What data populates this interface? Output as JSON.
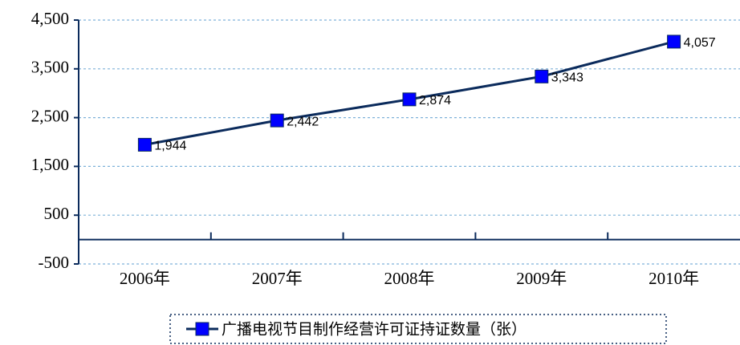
{
  "chart_data": {
    "type": "line",
    "categories": [
      "2006年",
      "2007年",
      "2008年",
      "2009年",
      "2010年"
    ],
    "series": [
      {
        "name": "广播电视节目制作经营许可证持证数量（张）",
        "color": "#0b2b5c",
        "marker_color": "#0000ff",
        "values": [
          1944,
          2442,
          2874,
          3343,
          4057
        ],
        "value_labels": [
          "1,944",
          "2,442",
          "2,874",
          "3,343",
          "4,057"
        ]
      }
    ],
    "ylim": [
      -500,
      4500
    ],
    "yticks": [
      -500,
      500,
      {
        "value": 1500,
        "label": "1,500"
      },
      {
        "value": 2500,
        "label": "2,500"
      },
      {
        "value": 3500,
        "label": "3,500"
      },
      {
        "value": 4500,
        "label": "4,500"
      }
    ],
    "grid": true,
    "legend": "bottom"
  }
}
